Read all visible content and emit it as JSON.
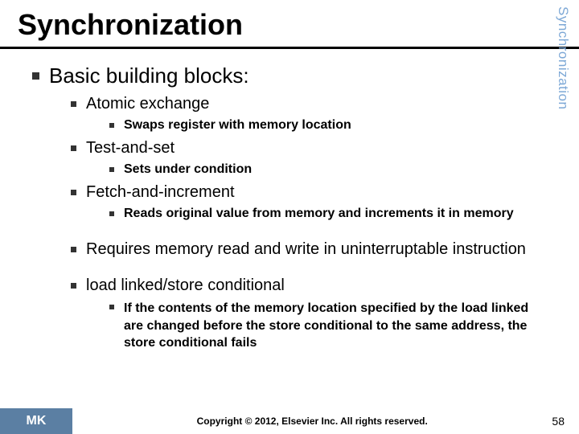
{
  "title": "Synchronization",
  "side_tab": "Synchronization",
  "main_heading": "Basic building blocks:",
  "items": {
    "atomic": {
      "label": "Atomic exchange",
      "sub": "Swaps register with memory location"
    },
    "tas": {
      "label": "Test-and-set",
      "sub": "Sets under condition"
    },
    "fai": {
      "label": "Fetch-and-increment",
      "sub": "Reads original value from memory and increments it in memory"
    },
    "req": {
      "label": "Requires memory read and write in uninterruptable instruction"
    },
    "llsc": {
      "label": "load linked/store conditional",
      "sub": "If the contents of the memory location specified by the load linked are changed before the store conditional to the same address, the store conditional fails"
    }
  },
  "footer": {
    "logo_text": "MK",
    "copyright": "Copyright © 2012, Elsevier Inc. All rights reserved.",
    "page": "58"
  },
  "colors": {
    "side_tab": "#7da8d6",
    "logo_bg": "#5b7fa3",
    "underline": "#000000",
    "text": "#000000",
    "background": "#ffffff"
  }
}
